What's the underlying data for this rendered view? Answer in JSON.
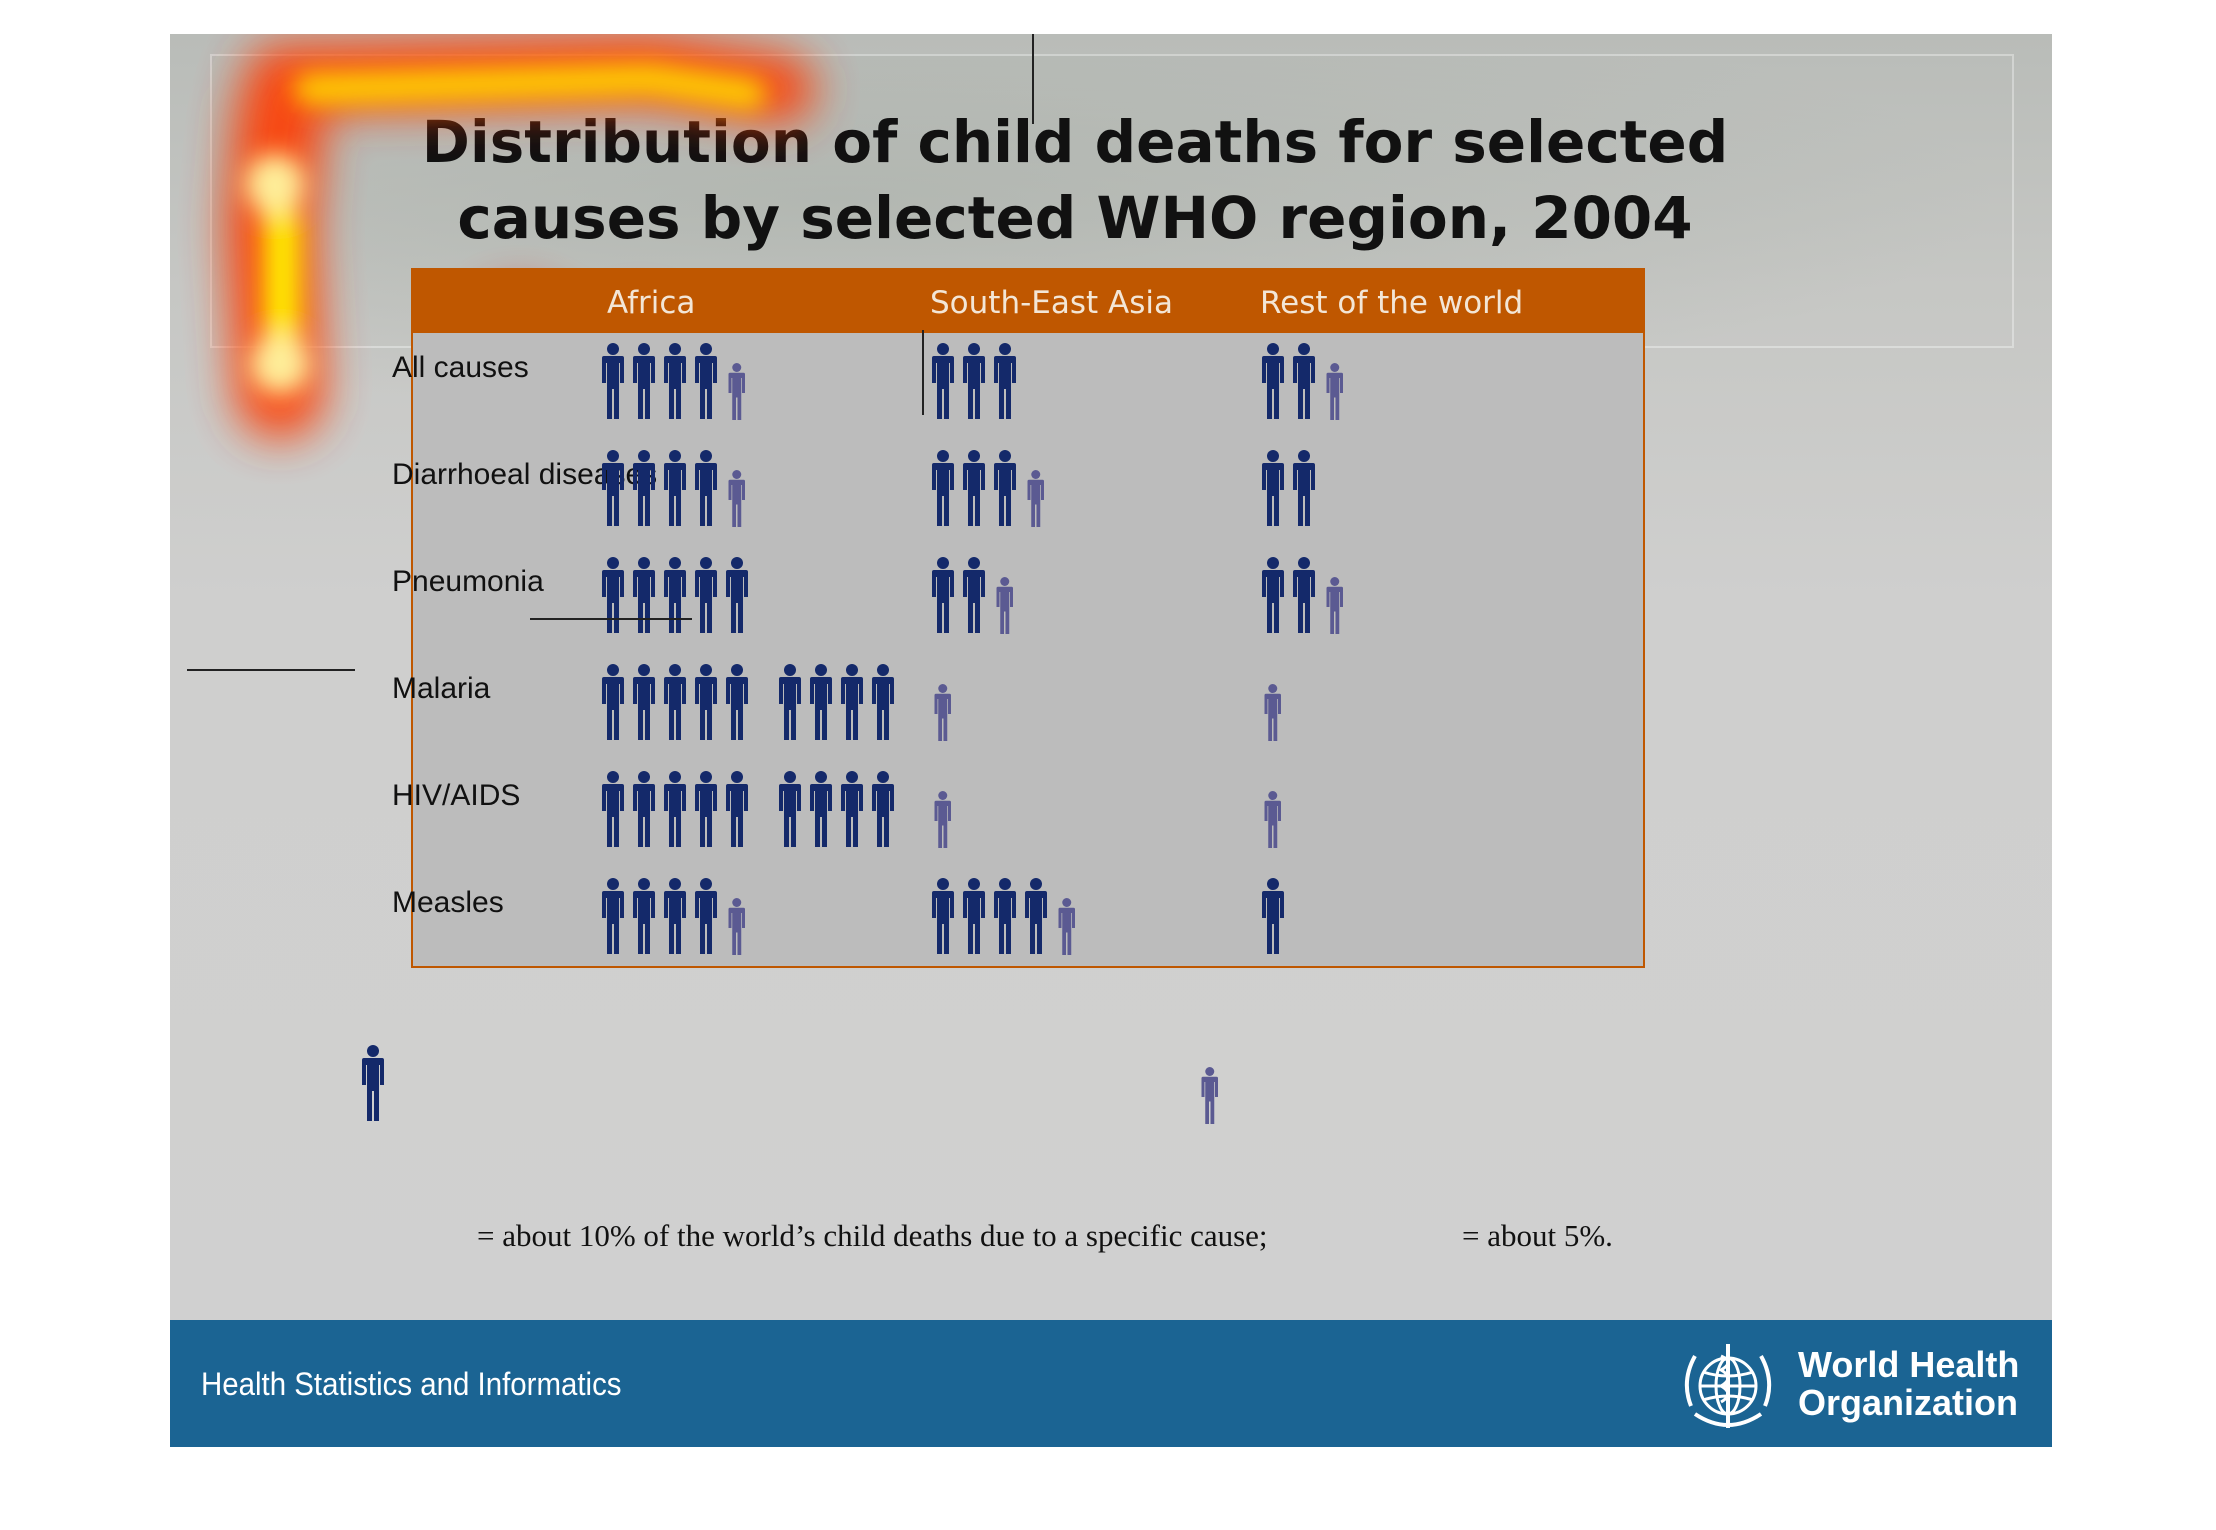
{
  "title": "Distribution of child deaths for selected causes by selected WHO region, 2004",
  "colors": {
    "header": "#bf5700",
    "table_bg": "#bcbcbc",
    "full_figure": "#14296a",
    "half_figure": "#5b5a92",
    "footer": "#1b6493"
  },
  "chart_data": {
    "type": "table",
    "title": "Distribution of child deaths for selected causes by selected WHO region, 2004",
    "columns": [
      "Africa",
      "South-East Asia",
      "Rest of the world"
    ],
    "rows": [
      {
        "cause": "All causes",
        "values": [
          45,
          30,
          25
        ]
      },
      {
        "cause": "Diarrhoeal diseases",
        "values": [
          45,
          35,
          20
        ]
      },
      {
        "cause": "Pneumonia",
        "values": [
          50,
          25,
          25
        ]
      },
      {
        "cause": "Malaria",
        "values": [
          90,
          5,
          5
        ]
      },
      {
        "cause": "HIV/AIDS",
        "values": [
          90,
          5,
          5
        ]
      },
      {
        "cause": "Measles",
        "values": [
          45,
          45,
          10
        ]
      }
    ],
    "unit": "% of the world's child deaths due to a specific cause",
    "legend": [
      {
        "icon": "full-person-icon",
        "value": 10,
        "text": "= about 10% of the world’s child deaths due to a specific cause;"
      },
      {
        "icon": "half-person-icon",
        "value": 5,
        "text": "= about 5%."
      }
    ]
  },
  "footer": {
    "label": "Health Statistics and Informatics",
    "org_line1": "World Health",
    "org_line2": "Organization"
  }
}
